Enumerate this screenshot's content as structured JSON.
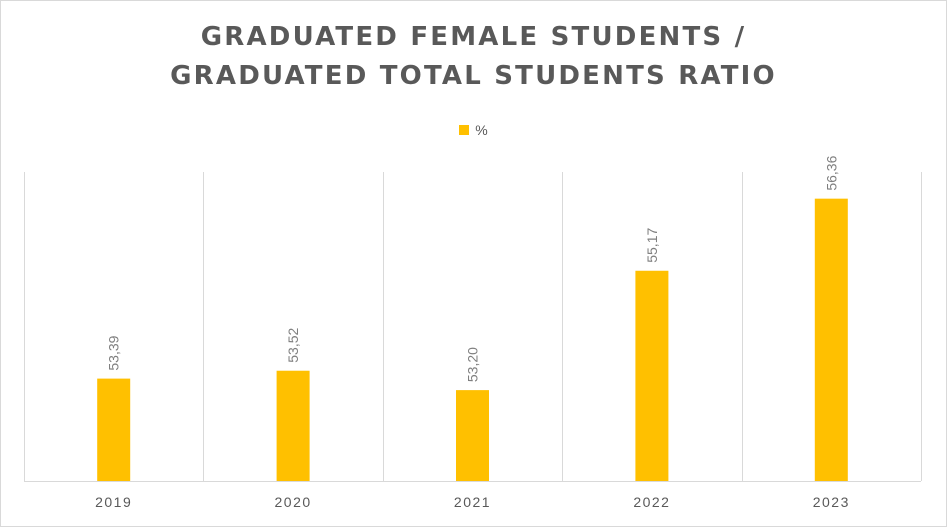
{
  "chart_data": {
    "type": "bar",
    "title_line1": "GRADUATED FEMALE STUDENTS /",
    "title_line2": "GRADUATED TOTAL STUDENTS RATIO",
    "categories": [
      "2019",
      "2020",
      "2021",
      "2022",
      "2023"
    ],
    "series": [
      {
        "name": "%",
        "values": [
          53.39,
          53.52,
          53.2,
          55.17,
          56.36
        ],
        "labels": [
          "53,39",
          "53,52",
          "53,20",
          "55,17",
          "56,36"
        ]
      }
    ],
    "ylim": [
      51.7,
      56.8
    ],
    "legend_position": "top-center",
    "grid": "vertical-category-lines",
    "colors": {
      "bar": "#ffc000",
      "grid": "#d9d9d9",
      "text": "#595959",
      "label": "#7f7f7f"
    }
  }
}
